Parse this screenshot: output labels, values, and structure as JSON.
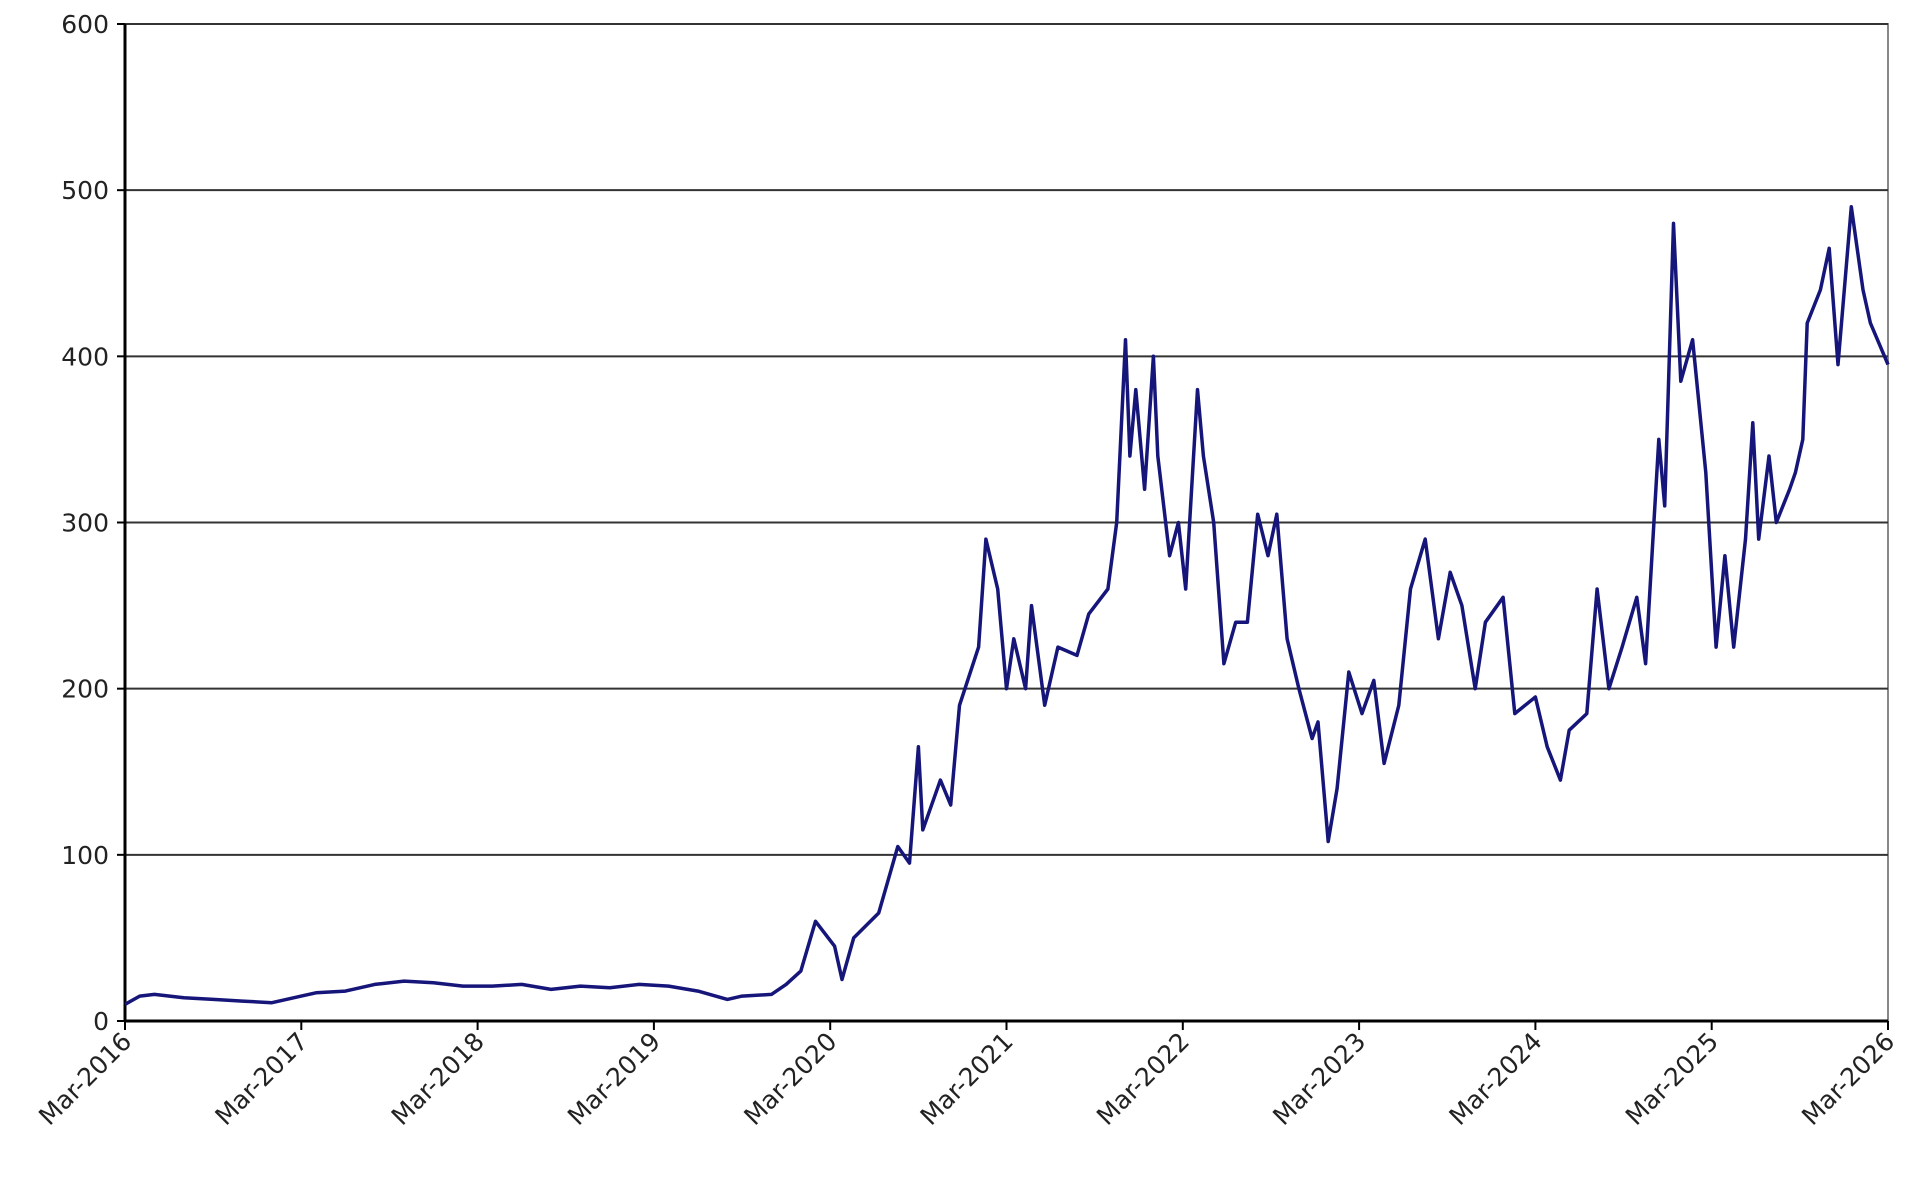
{
  "chart_data": {
    "type": "line",
    "color": "#16167a",
    "grid": true,
    "ylim": [
      0,
      600
    ],
    "yticks": [
      0,
      100,
      200,
      300,
      400,
      500,
      600
    ],
    "xlim": [
      0,
      120
    ],
    "xticks": [
      {
        "value": 0,
        "label": "Mar-2016"
      },
      {
        "value": 12,
        "label": "Mar-2017"
      },
      {
        "value": 24,
        "label": "Mar-2018"
      },
      {
        "value": 36,
        "label": "Mar-2019"
      },
      {
        "value": 48,
        "label": "Mar-2020"
      },
      {
        "value": 60,
        "label": "Mar-2021"
      },
      {
        "value": 72,
        "label": "Mar-2022"
      },
      {
        "value": 84,
        "label": "Mar-2023"
      },
      {
        "value": 96,
        "label": "Mar-2024"
      },
      {
        "value": 108,
        "label": "Mar-2025"
      },
      {
        "value": 120,
        "label": "Mar-2026"
      }
    ],
    "x": [
      0,
      1,
      2,
      4,
      6,
      8,
      10,
      12,
      13,
      15,
      17,
      19,
      21,
      23,
      25,
      27,
      29,
      31,
      33,
      35,
      37,
      39,
      41,
      42,
      44,
      45,
      46,
      47,
      48.3,
      48.8,
      49.6,
      51.3,
      52.6,
      53.4,
      54,
      54.3,
      55.5,
      56.2,
      56.8,
      58.1,
      58.6,
      59.4,
      60,
      60.5,
      61.3,
      61.7,
      62.6,
      63.5,
      64.8,
      65.6,
      66.9,
      67.5,
      68.1,
      68.4,
      68.8,
      69.4,
      70,
      70.3,
      71.1,
      71.7,
      72.2,
      73,
      73.4,
      74.1,
      74.8,
      75.6,
      76.4,
      77.1,
      77.8,
      78.4,
      79.1,
      79.9,
      80.8,
      81.2,
      81.9,
      82.5,
      83.3,
      84.2,
      85,
      85.7,
      86.7,
      87.5,
      88.5,
      89.4,
      90.2,
      91,
      91.9,
      92.6,
      93.8,
      94.6,
      96,
      96.8,
      97.7,
      98.3,
      99.5,
      100.2,
      101,
      101.9,
      102.9,
      103.5,
      104.4,
      104.8,
      105.4,
      105.9,
      106.7,
      107.6,
      108.3,
      108.9,
      109.5,
      110.3,
      110.8,
      111.2,
      111.9,
      112.4,
      113.3,
      113.7,
      114.2,
      114.5,
      115.4,
      116,
      116.6,
      117.5,
      118.3,
      118.8,
      120
    ],
    "values": [
      10,
      15,
      16,
      14,
      13,
      12,
      11,
      15,
      17,
      18,
      22,
      24,
      23,
      21,
      21,
      22,
      19,
      21,
      20,
      22,
      21,
      18,
      13,
      15,
      16,
      22,
      30,
      60,
      45,
      25,
      50,
      65,
      105,
      95,
      165,
      115,
      145,
      130,
      190,
      225,
      290,
      260,
      200,
      230,
      200,
      250,
      190,
      225,
      220,
      245,
      260,
      300,
      410,
      340,
      380,
      320,
      400,
      340,
      280,
      300,
      260,
      380,
      340,
      300,
      215,
      240,
      240,
      305,
      280,
      305,
      230,
      200,
      170,
      180,
      108,
      140,
      210,
      185,
      205,
      155,
      190,
      260,
      290,
      230,
      270,
      250,
      200,
      240,
      255,
      185,
      195,
      165,
      145,
      175,
      185,
      260,
      200,
      225,
      255,
      215,
      350,
      310,
      480,
      385,
      410,
      330,
      225,
      280,
      225,
      290,
      360,
      290,
      340,
      300,
      320,
      330,
      350,
      420,
      440,
      465,
      395,
      490,
      440,
      420,
      395
    ]
  }
}
